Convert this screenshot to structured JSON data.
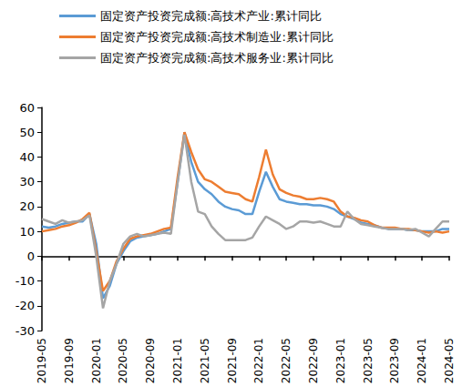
{
  "chart_data": {
    "type": "line",
    "categories": [
      "2019-05",
      null,
      null,
      null,
      "2019-09",
      null,
      null,
      null,
      "2020-01",
      null,
      null,
      null,
      "2020-05",
      null,
      null,
      null,
      "2020-09",
      null,
      null,
      null,
      "2021-01",
      null,
      null,
      null,
      "2021-05",
      null,
      null,
      null,
      "2021-09",
      null,
      null,
      null,
      "2022-01",
      null,
      null,
      null,
      "2022-05",
      null,
      null,
      null,
      "2022-09",
      null,
      null,
      null,
      "2023-01",
      null,
      null,
      null,
      "2023-05",
      null,
      null,
      null,
      "2023-09",
      null,
      null,
      null,
      "2024-01",
      null,
      null,
      null,
      "2024-05"
    ],
    "series": [
      {
        "name": "固定资产投资完成额:高技术产业:累计同比",
        "color": "#5B9BD5",
        "values": [
          12,
          11.5,
          12,
          13,
          13.5,
          14,
          14,
          17,
          5,
          -17,
          -12,
          -3,
          2,
          6,
          7.5,
          8,
          8.5,
          9,
          10,
          11,
          30,
          50,
          38,
          30,
          27,
          25,
          22,
          20,
          19,
          18.5,
          17,
          17,
          26,
          34,
          28,
          23,
          22,
          21.5,
          21,
          21,
          20.5,
          20.5,
          20,
          19,
          17,
          16,
          15,
          13.5,
          13,
          12.5,
          11.5,
          11,
          11,
          11,
          10.5,
          10.5,
          10,
          10,
          10,
          11,
          11
        ]
      },
      {
        "name": "固定资产投资完成额:高技术制造业:累计同比",
        "color": "#ED7D31",
        "values": [
          10,
          10.5,
          11,
          12,
          12.5,
          13.5,
          15,
          17.5,
          2,
          -14,
          -10,
          -2,
          3,
          7,
          8,
          8.5,
          9,
          10,
          11,
          11.5,
          32,
          50,
          42,
          35,
          31,
          30,
          28,
          26,
          25.5,
          25,
          23,
          22,
          32,
          43,
          33,
          27,
          25.5,
          24.5,
          24,
          23,
          23,
          23.5,
          23,
          22,
          18,
          16,
          15.5,
          14.5,
          14,
          12.5,
          11.5,
          11.5,
          11.5,
          11,
          11,
          10.5,
          10,
          9.5,
          10,
          9.5,
          10
        ]
      },
      {
        "name": "固定资产投资完成额:高技术服务业:累计同比",
        "color": "#A5A5A5",
        "values": [
          15,
          14,
          13,
          14.5,
          13.5,
          14,
          14.5,
          16.5,
          0,
          -21,
          -10,
          -3,
          5,
          8,
          9,
          8,
          8.5,
          9,
          9.5,
          9,
          30,
          49,
          30,
          18,
          17,
          12,
          9,
          6.5,
          6.5,
          6.5,
          6.5,
          7.5,
          12,
          16,
          14.5,
          13,
          11,
          12,
          14,
          14,
          13.5,
          14,
          13,
          12,
          12,
          18,
          15,
          13,
          12.5,
          12,
          11.5,
          11,
          11,
          11,
          10.5,
          11,
          9.5,
          8,
          11,
          14,
          14
        ]
      }
    ],
    "ylim": [
      -30,
      60
    ],
    "yticks": [
      -30,
      -20,
      -10,
      0,
      10,
      20,
      30,
      40,
      50,
      60
    ],
    "grid": false,
    "legend": "top"
  }
}
